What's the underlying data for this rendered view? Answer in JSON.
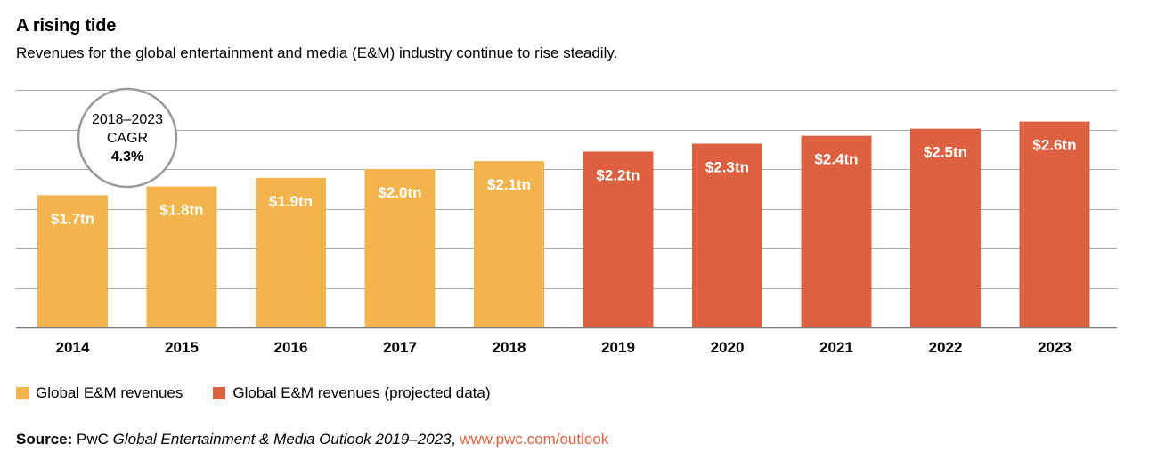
{
  "title": "A rising tide",
  "subtitle": "Revenues for the global entertainment and media (E&M) industry continue to rise steadily.",
  "callout": {
    "line1": "2018–2023",
    "line2": "CAGR",
    "line3": "4.3%"
  },
  "legend": {
    "actual": "Global E&M revenues",
    "projected": "Global E&M revenues (projected data)"
  },
  "source": {
    "label": "Source:",
    "prefix": "PwC",
    "publication": "Global Entertainment & Media Outlook 2019–2023",
    "separator": ",",
    "url": "www.pwc.com/outlook"
  },
  "colors": {
    "actual": "#F2B54E",
    "projected": "#DD6141",
    "grid": "#A8A8A8",
    "link": "#DD6141",
    "callout_ring": "#999999"
  },
  "chart_data": {
    "type": "bar",
    "title": "A rising tide",
    "subtitle": "Revenues for the global entertainment and media (E&M) industry continue to rise steadily.",
    "xlabel": "",
    "ylabel": "",
    "grid": true,
    "ylim": [
      0,
      3.0
    ],
    "categories": [
      "2014",
      "2015",
      "2016",
      "2017",
      "2018",
      "2019",
      "2020",
      "2021",
      "2022",
      "2023"
    ],
    "values": [
      1.67,
      1.78,
      1.89,
      2.0,
      2.1,
      2.22,
      2.32,
      2.42,
      2.51,
      2.6
    ],
    "labels": [
      "$1.7tn",
      "$1.8tn",
      "$1.9tn",
      "$2.0tn",
      "$2.1tn",
      "$2.2tn",
      "$2.3tn",
      "$2.4tn",
      "$2.5tn",
      "$2.6tn"
    ],
    "projected": [
      false,
      false,
      false,
      false,
      false,
      true,
      true,
      true,
      true,
      true
    ],
    "series": [
      {
        "name": "Global E&M revenues",
        "categories": [
          "2014",
          "2015",
          "2016",
          "2017",
          "2018"
        ]
      },
      {
        "name": "Global E&M revenues (projected data)",
        "categories": [
          "2019",
          "2020",
          "2021",
          "2022",
          "2023"
        ]
      }
    ],
    "legend_position": "bottom-left"
  }
}
